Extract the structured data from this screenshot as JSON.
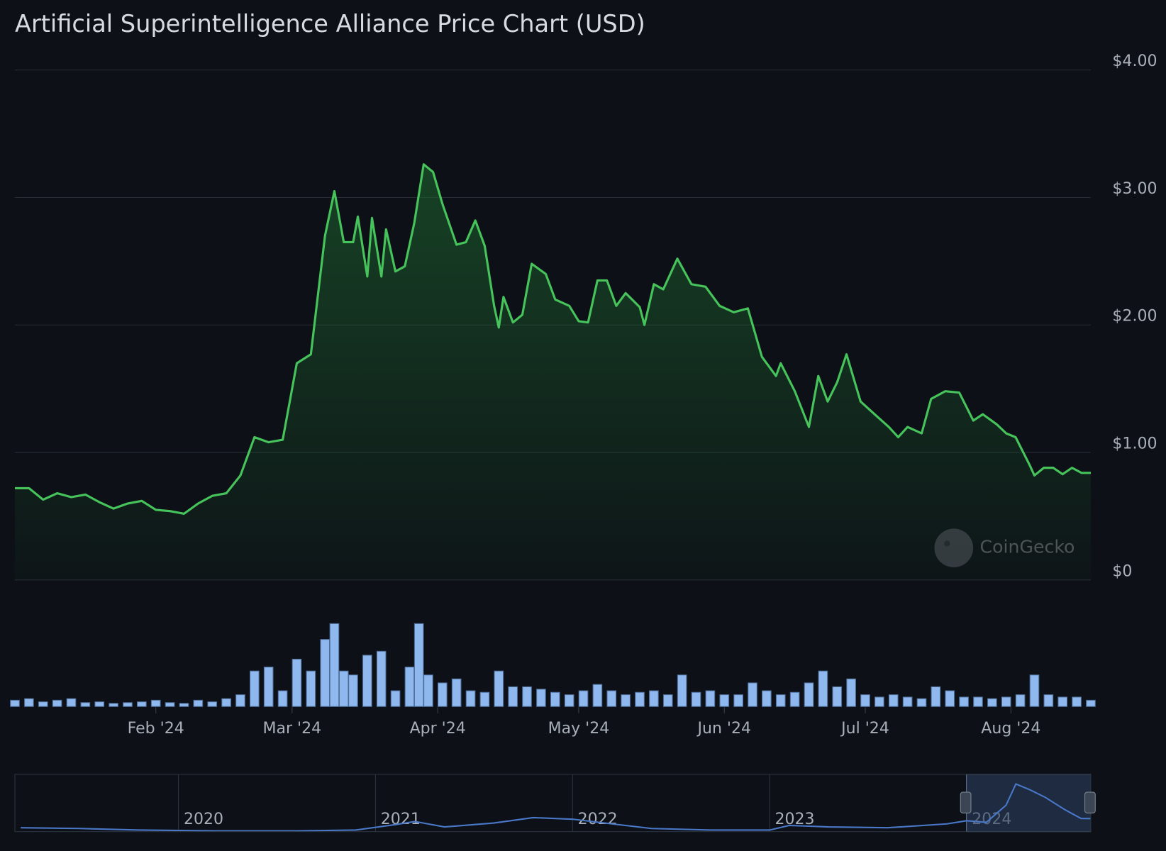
{
  "chart_data": {
    "type": "line",
    "title": "Artificial Superintelligence Alliance Price Chart (USD)",
    "watermark": "CoinGecko",
    "color": "#46c35a",
    "volume_color": "#8fb8ee",
    "grid": true,
    "xlim": [
      0,
      229
    ],
    "xticks": [
      {
        "value": 30,
        "label": "Feb '24"
      },
      {
        "value": 59,
        "label": "Mar '24"
      },
      {
        "value": 90,
        "label": "Apr '24"
      },
      {
        "value": 120,
        "label": "May '24"
      },
      {
        "value": 151,
        "label": "Jun '24"
      },
      {
        "value": 181,
        "label": "Jul '24"
      },
      {
        "value": 212,
        "label": "Aug '24"
      }
    ],
    "ylim": [
      0,
      4
    ],
    "yticks": [
      {
        "value": 0,
        "label": "$0"
      },
      {
        "value": 1,
        "label": "$1.00"
      },
      {
        "value": 2,
        "label": "$2.00"
      },
      {
        "value": 3,
        "label": "$3.00"
      },
      {
        "value": 4,
        "label": "$4.00"
      }
    ],
    "x": [
      0,
      3,
      6,
      9,
      12,
      15,
      18,
      21,
      24,
      27,
      30,
      33,
      36,
      39,
      42,
      45,
      48,
      51,
      54,
      57,
      60,
      63,
      66,
      68,
      70,
      72,
      73,
      75,
      76,
      78,
      79,
      81,
      83,
      85,
      87,
      89,
      91,
      94,
      96,
      98,
      100,
      102,
      103,
      104,
      106,
      108,
      110,
      113,
      115,
      118,
      120,
      122,
      124,
      126,
      128,
      130,
      133,
      134,
      136,
      138,
      141,
      144,
      147,
      150,
      153,
      156,
      159,
      162,
      163,
      166,
      169,
      171,
      173,
      175,
      177,
      180,
      183,
      186,
      188,
      190,
      193,
      195,
      198,
      201,
      204,
      206,
      209,
      211,
      213,
      216,
      217,
      219,
      221,
      223,
      225,
      227,
      229
    ],
    "values": [
      0.72,
      0.72,
      0.63,
      0.68,
      0.65,
      0.67,
      0.61,
      0.56,
      0.6,
      0.62,
      0.55,
      0.54,
      0.52,
      0.6,
      0.66,
      0.68,
      0.82,
      1.12,
      1.08,
      1.1,
      1.7,
      1.77,
      2.7,
      3.05,
      2.65,
      2.65,
      2.85,
      2.38,
      2.84,
      2.38,
      2.75,
      2.42,
      2.46,
      2.8,
      3.26,
      3.2,
      2.95,
      2.63,
      2.65,
      2.82,
      2.62,
      2.15,
      1.98,
      2.22,
      2.02,
      2.08,
      2.48,
      2.4,
      2.2,
      2.15,
      2.03,
      2.02,
      2.35,
      2.35,
      2.15,
      2.25,
      2.14,
      2.0,
      2.32,
      2.28,
      2.52,
      2.32,
      2.3,
      2.15,
      2.1,
      2.13,
      1.75,
      1.6,
      1.7,
      1.48,
      1.2,
      1.6,
      1.4,
      1.55,
      1.77,
      1.4,
      1.3,
      1.2,
      1.12,
      1.2,
      1.15,
      1.42,
      1.48,
      1.47,
      1.25,
      1.3,
      1.22,
      1.15,
      1.12,
      0.9,
      0.82,
      0.88,
      0.88,
      0.83,
      0.88,
      0.84,
      0.84
    ],
    "volume": {
      "vlim": [
        0,
        115
      ],
      "x": [
        0,
        3,
        6,
        9,
        12,
        15,
        18,
        21,
        24,
        27,
        30,
        33,
        36,
        39,
        42,
        45,
        48,
        51,
        54,
        57,
        60,
        63,
        66,
        68,
        70,
        72,
        75,
        78,
        81,
        84,
        86,
        88,
        91,
        94,
        97,
        100,
        103,
        106,
        109,
        112,
        115,
        118,
        121,
        124,
        127,
        130,
        133,
        136,
        139,
        142,
        145,
        148,
        151,
        154,
        157,
        160,
        163,
        166,
        169,
        172,
        175,
        178,
        181,
        184,
        187,
        190,
        193,
        196,
        199,
        202,
        205,
        208,
        211,
        214,
        217,
        220,
        223,
        226,
        229
      ],
      "values": [
        8,
        10,
        6,
        8,
        10,
        5,
        6,
        4,
        5,
        6,
        8,
        5,
        4,
        8,
        6,
        10,
        15,
        45,
        50,
        20,
        60,
        45,
        85,
        105,
        45,
        40,
        65,
        70,
        20,
        50,
        105,
        40,
        30,
        35,
        20,
        18,
        45,
        25,
        25,
        22,
        18,
        15,
        20,
        28,
        20,
        15,
        18,
        20,
        15,
        40,
        18,
        20,
        15,
        15,
        30,
        20,
        15,
        18,
        30,
        45,
        25,
        35,
        15,
        12,
        15,
        12,
        10,
        25,
        20,
        12,
        12,
        10,
        12,
        15,
        40,
        15,
        12,
        12,
        8
      ]
    },
    "navigator": {
      "xlim": [
        2019.17,
        2024.63
      ],
      "ylim": [
        0,
        3.5
      ],
      "xticks": [
        2020,
        2021,
        2022,
        2023,
        2024
      ],
      "x": [
        2019.2,
        2019.5,
        2019.8,
        2020.2,
        2020.6,
        2020.9,
        2021.1,
        2021.2,
        2021.35,
        2021.6,
        2021.8,
        2022.0,
        2022.2,
        2022.4,
        2022.7,
        2023.0,
        2023.1,
        2023.3,
        2023.6,
        2023.9,
        2024.0,
        2024.1,
        2024.2,
        2024.25,
        2024.32,
        2024.4,
        2024.5,
        2024.58,
        2024.63
      ],
      "values": [
        0.25,
        0.2,
        0.1,
        0.05,
        0.05,
        0.1,
        0.45,
        0.65,
        0.3,
        0.55,
        0.9,
        0.8,
        0.5,
        0.2,
        0.1,
        0.1,
        0.4,
        0.3,
        0.25,
        0.5,
        0.7,
        0.6,
        1.7,
        3.07,
        2.7,
        2.2,
        1.4,
        0.85,
        0.84
      ]
    }
  }
}
